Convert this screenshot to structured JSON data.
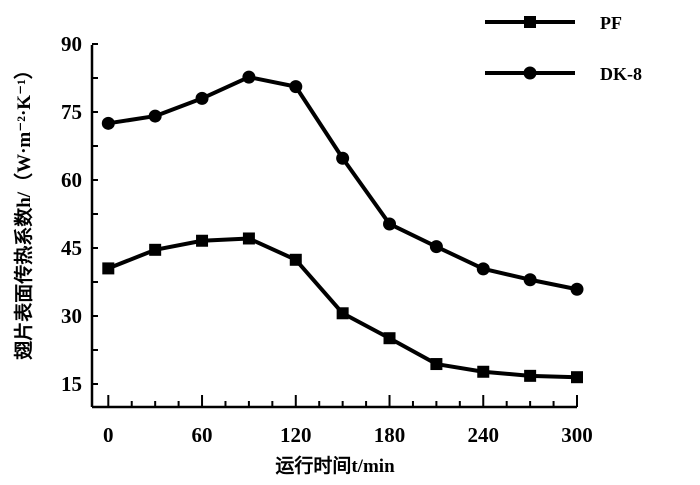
{
  "chart_data": {
    "type": "line",
    "title": "",
    "xlabel": "运行时间t/min",
    "ylabel": "翅片表面传热系数h/（W·m⁻²·K⁻¹）",
    "xlim": [
      -10,
      300
    ],
    "ylim": [
      10,
      90
    ],
    "xticks": [
      0,
      60,
      120,
      180,
      240,
      300
    ],
    "yticks": [
      15,
      30,
      45,
      60,
      75,
      90
    ],
    "grid": false,
    "legend_position": "top-right",
    "x": [
      0,
      30,
      60,
      90,
      120,
      150,
      180,
      210,
      240,
      270,
      300
    ],
    "series": [
      {
        "name": "PF",
        "marker": "square",
        "color": "#000000",
        "values": [
          40.5,
          44.6,
          46.6,
          47.1,
          42.4,
          30.6,
          25.1,
          19.4,
          17.7,
          16.8,
          16.5
        ]
      },
      {
        "name": "DK-8",
        "marker": "circle",
        "color": "#000000",
        "values": [
          72.5,
          74.1,
          78.0,
          82.7,
          80.6,
          64.8,
          50.3,
          45.3,
          40.4,
          38.0,
          35.9
        ]
      }
    ]
  }
}
